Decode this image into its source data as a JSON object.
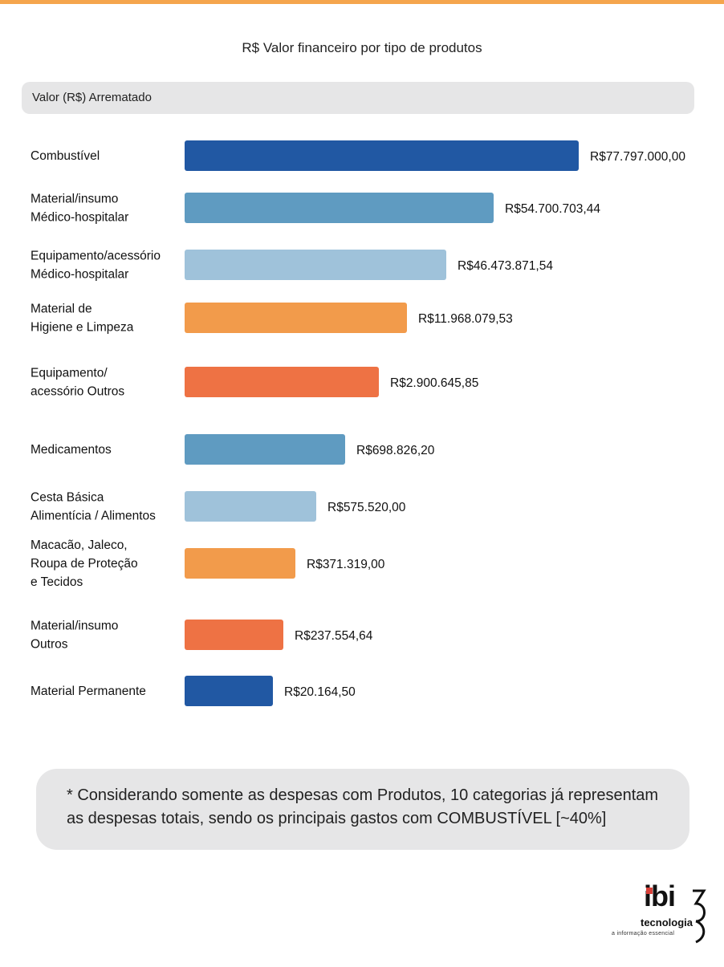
{
  "title": "R$ Valor financeiro por tipo de produtos",
  "header_label": "Valor (R$) Arrematado",
  "chart_data": {
    "type": "bar",
    "orientation": "horizontal",
    "title": "R$ Valor financeiro por tipo de produtos",
    "value_axis_label": "Valor (R$) Arrematado",
    "categories": [
      [
        "Combustível"
      ],
      [
        "Material/insumo",
        "Médico-hospitalar"
      ],
      [
        "Equipamento/acessório",
        "Médico-hospitalar"
      ],
      [
        "Material de",
        "Higiene e Limpeza"
      ],
      [
        "Equipamento/",
        "acessório Outros"
      ],
      [
        "Medicamentos"
      ],
      [
        "Cesta Básica",
        "Alimentícia / Alimentos"
      ],
      [
        "Macacão, Jaleco,",
        "Roupa de Proteção",
        "e Tecidos"
      ],
      [
        "Material/insumo",
        "Outros"
      ],
      [
        "Material Permanente"
      ]
    ],
    "values": [
      77797000.0,
      54700703.44,
      46473871.54,
      11968079.53,
      2900645.85,
      698826.2,
      575520.0,
      371319.0,
      237554.64,
      20164.5
    ],
    "value_labels": [
      "R$77.797.000,00",
      "R$54.700.703,44",
      "R$46.473.871,54",
      "R$11.968.079,53",
      "R$2.900.645,85",
      "R$698.826,20",
      "R$575.520,00",
      "R$371.319,00",
      "R$237.554,64",
      "R$20.164,50"
    ],
    "colors": [
      "#2158a3",
      "#5f9bc1",
      "#9fc2da",
      "#f29b4b",
      "#ee7244",
      "#5f9bc1",
      "#9fc2da",
      "#f29b4b",
      "#ee7244",
      "#2158a3"
    ],
    "scale_note": "bar lengths not proportional to values"
  },
  "note": "* Considerando somente as despesas com Produtos, 10 categorias já representam as despesas totais, sendo os principais gastos com COMBUSTÍVEL [~40%]",
  "logo": {
    "word": "ibi",
    "sub": "tecnologia",
    "tagline": "a informação essencial"
  }
}
